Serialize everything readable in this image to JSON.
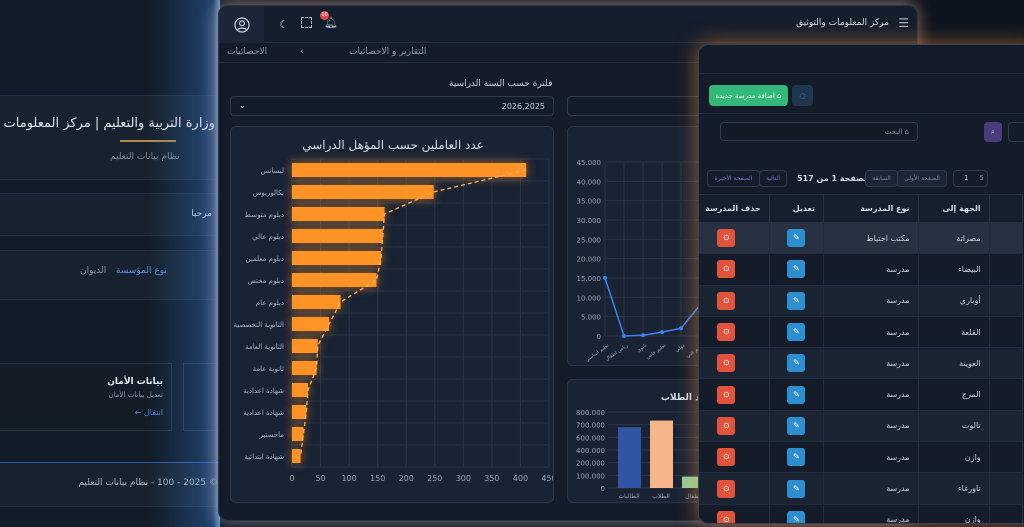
{
  "background_page": {
    "title": "وزارة التربية والتعليم | مركز المعلومات والتوثيق",
    "subtitle": "نظام بيانات التعليم",
    "welcome": "مرحبا",
    "tabs": [
      "نوع المؤسسة",
      "الديوان"
    ],
    "card": {
      "title": "بيانات الأمان",
      "desc": "تعديل بيانات الأمان",
      "link": "انتقال ←"
    },
    "footer": "© 2025 - 100 - نظام بيانات التعليم"
  },
  "header": {
    "title": "مركز المعلومات والتوثيق",
    "notification_count": "10",
    "icons": [
      "user-icon",
      "moon-icon",
      "fullscreen-icon",
      "bell-icon",
      "menu-icon"
    ]
  },
  "breadcrumb": {
    "parent": "التقارير و الاحصائيات",
    "sep": "›",
    "current": "الاحصائيات"
  },
  "filter": {
    "label": "فلترة حسب السنة الدراسية",
    "year_value": "2026,2025",
    "second_value": ""
  },
  "chart_data": [
    {
      "type": "bar",
      "orientation": "horizontal",
      "title": "عدد العاملين حسب المؤهل الدراسي",
      "categories": [
        "ليسانس",
        "بكالوريوس",
        "دبلوم متوسط",
        "دبلوم عالي",
        "دبلوم معلمين",
        "دبلوم مختص",
        "دبلوم عام",
        "الثانوية التخصصية",
        "الثانوية العامة",
        "ثانوية عامة",
        "شهادة اعدادية",
        "شهادة اعدادية",
        "ماجستير",
        "شهادة ابتدائية"
      ],
      "values": [
        410,
        248,
        162,
        159,
        156,
        148,
        85,
        65,
        45,
        43,
        28,
        25,
        20,
        15
      ],
      "xticks": [
        "0",
        "50",
        "100",
        "150",
        "200",
        "250",
        "300",
        "350",
        "400",
        "450"
      ],
      "xlim": [
        0,
        450
      ],
      "color": "#ff9326",
      "trendline": "dashed",
      "grid": true
    },
    {
      "type": "line",
      "title": "",
      "categories": [
        "تعليم اساسي",
        "رياض اطفال",
        "ثانوي",
        "تعليم خاص",
        "دولي",
        "تعليم فني"
      ],
      "values": [
        15000,
        0,
        200,
        1000,
        2000,
        8000
      ],
      "yticks": [
        "0",
        "5.000",
        "10.000",
        "15.000",
        "20.000",
        "25.000",
        "30.000",
        "35.000",
        "40.000",
        "45.000"
      ],
      "ylim": [
        0,
        45000
      ],
      "color": "#3b82f6",
      "grid": true
    },
    {
      "type": "bar",
      "title": "عدد الطلاب",
      "categories": [
        "الطالبات",
        "الطلاب",
        "اطفال"
      ],
      "values": [
        640000,
        710000,
        120000
      ],
      "colors": [
        "#2f55a4",
        "#f9b58a",
        "#8fcf9b"
      ],
      "yticks": [
        "0",
        "100.000",
        "200.000",
        "400.000",
        "600.000",
        "700.000",
        "800.000"
      ],
      "ylim": [
        0,
        800000
      ],
      "grid": true
    }
  ],
  "schools": {
    "add_button": "اضافة مدرسة جديدة",
    "search_placeholder": "البحث",
    "pagination": {
      "page_size": "5",
      "page_input": "1",
      "first": "الصفحة الأولى",
      "prev": "السابقة",
      "info": "الصفحة 1 من 517",
      "next": "التالية",
      "last": "الصفحة الأخيرة"
    },
    "columns": [
      "الجهة إلى",
      "نوع المدرسة",
      "تعديل",
      "حذف المدرسة"
    ],
    "rows": [
      {
        "region": "مصراتة",
        "type": "مكتب احتياط"
      },
      {
        "region": "البيضاء",
        "type": "مدرسة"
      },
      {
        "region": "أوباري",
        "type": "مدرسة"
      },
      {
        "region": "القلعة",
        "type": "مدرسة"
      },
      {
        "region": "العوينة",
        "type": "مدرسة"
      },
      {
        "region": "المرج",
        "type": "مدرسة"
      },
      {
        "region": "تالوت",
        "type": "مدرسة"
      },
      {
        "region": "وازن",
        "type": "مدرسة"
      },
      {
        "region": "تاورغاء",
        "type": "مدرسة"
      },
      {
        "region": "وازن",
        "type": "مدرسة"
      }
    ]
  }
}
